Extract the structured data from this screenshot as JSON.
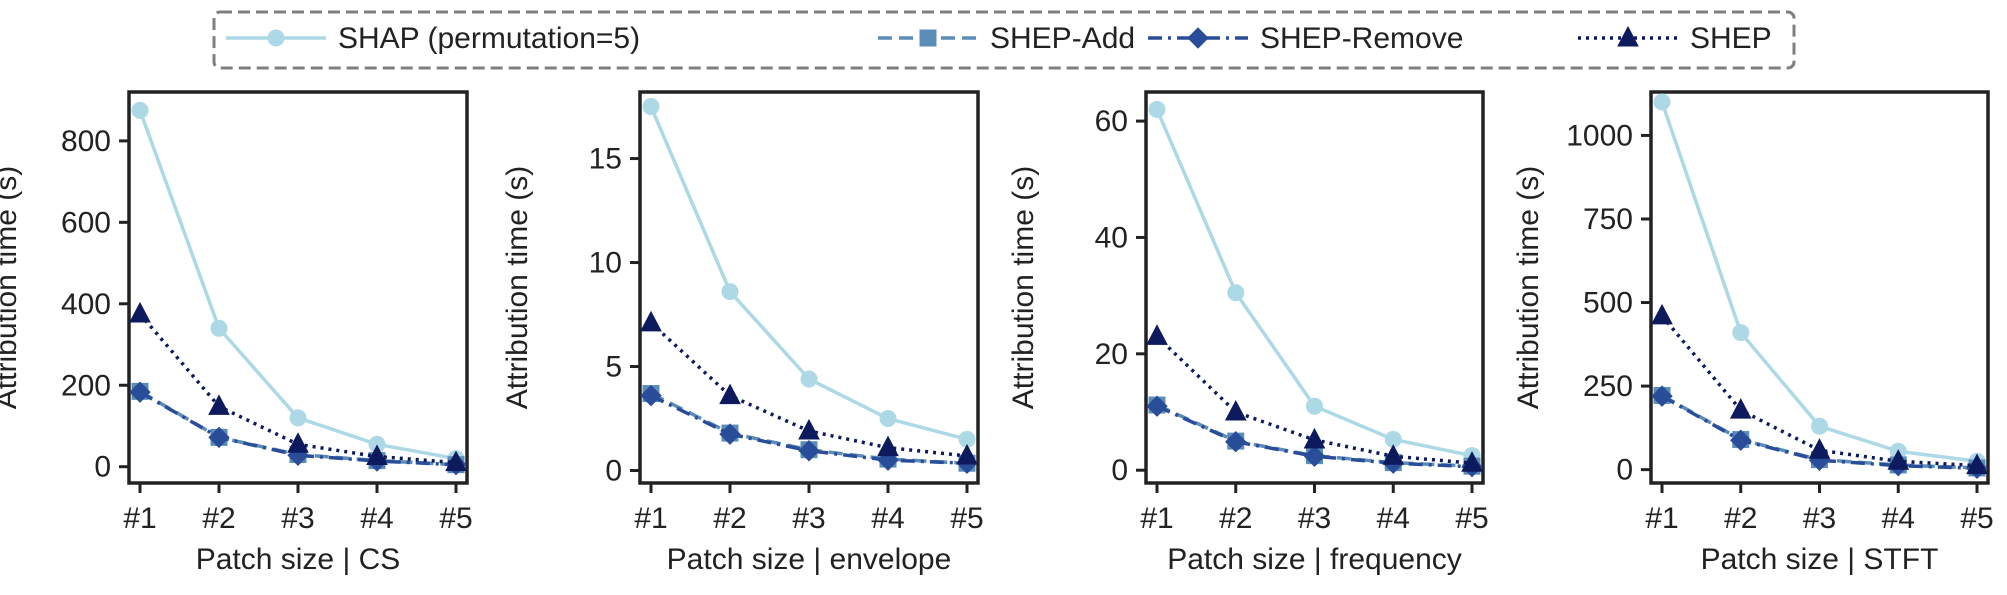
{
  "legend": {
    "entries": [
      {
        "label": "SHAP (permutation=5)",
        "color": "#add8e6",
        "dash": "solid",
        "marker": "circle"
      },
      {
        "label": "SHEP-Add",
        "color": "#5b8db8",
        "dash": "dashed",
        "marker": "square"
      },
      {
        "label": "SHEP-Remove",
        "color": "#2a4d9a",
        "dash": "dashdot",
        "marker": "diamond"
      },
      {
        "label": "SHEP",
        "color": "#0d1a5e",
        "dash": "dotted",
        "marker": "triangle"
      }
    ]
  },
  "chart_data": [
    {
      "type": "line",
      "title": "",
      "xlabel": "Patch size | CS",
      "ylabel": "Attribution time (s)",
      "categories": [
        "#1",
        "#2",
        "#3",
        "#4",
        "#5"
      ],
      "ylim": [
        -40,
        920
      ],
      "yticks": [
        0,
        200,
        400,
        600,
        800
      ],
      "grid": false,
      "legend": "top-center",
      "series": [
        {
          "name": "SHAP (permutation=5)",
          "values": [
            875,
            340,
            120,
            55,
            20
          ]
        },
        {
          "name": "SHEP-Add",
          "values": [
            185,
            72,
            30,
            15,
            5
          ]
        },
        {
          "name": "SHEP-Remove",
          "values": [
            183,
            72,
            28,
            14,
            5
          ]
        },
        {
          "name": "SHEP",
          "values": [
            375,
            148,
            55,
            25,
            10
          ]
        }
      ]
    },
    {
      "type": "line",
      "title": "",
      "xlabel": "Patch size | envelope",
      "ylabel": "Attribution time (s)",
      "categories": [
        "#1",
        "#2",
        "#3",
        "#4",
        "#5"
      ],
      "ylim": [
        -0.6,
        18.2
      ],
      "yticks": [
        0,
        5,
        10,
        15
      ],
      "grid": false,
      "legend": "top-center",
      "series": [
        {
          "name": "SHAP (permutation=5)",
          "values": [
            17.5,
            8.6,
            4.4,
            2.5,
            1.5
          ]
        },
        {
          "name": "SHEP-Add",
          "values": [
            3.7,
            1.8,
            1.0,
            0.55,
            0.35
          ]
        },
        {
          "name": "SHEP-Remove",
          "values": [
            3.6,
            1.75,
            0.95,
            0.5,
            0.35
          ]
        },
        {
          "name": "SHEP",
          "values": [
            7.1,
            3.6,
            1.9,
            1.1,
            0.7
          ]
        }
      ]
    },
    {
      "type": "line",
      "title": "",
      "xlabel": "Patch size | frequency",
      "ylabel": "Attribution time (s)",
      "categories": [
        "#1",
        "#2",
        "#3",
        "#4",
        "#5"
      ],
      "ylim": [
        -2.2,
        65
      ],
      "yticks": [
        0,
        20,
        40,
        60
      ],
      "grid": false,
      "legend": "top-center",
      "series": [
        {
          "name": "SHAP (permutation=5)",
          "values": [
            62,
            30.5,
            11,
            5.3,
            2.5
          ]
        },
        {
          "name": "SHEP-Add",
          "values": [
            11.2,
            5,
            2.5,
            1.3,
            0.7
          ]
        },
        {
          "name": "SHEP-Remove",
          "values": [
            11,
            4.9,
            2.4,
            1.2,
            0.6
          ]
        },
        {
          "name": "SHEP",
          "values": [
            23,
            10,
            5.2,
            2.4,
            1.2
          ]
        }
      ]
    },
    {
      "type": "line",
      "title": "",
      "xlabel": "Patch size | STFT",
      "ylabel": "Attribution time (s)",
      "categories": [
        "#1",
        "#2",
        "#3",
        "#4",
        "#5"
      ],
      "ylim": [
        -40,
        1130
      ],
      "yticks": [
        0,
        250,
        500,
        750,
        1000
      ],
      "grid": false,
      "legend": "top-center",
      "series": [
        {
          "name": "SHAP (permutation=5)",
          "values": [
            1100,
            410,
            130,
            55,
            25
          ]
        },
        {
          "name": "SHEP-Add",
          "values": [
            222,
            90,
            30,
            14,
            5
          ]
        },
        {
          "name": "SHEP-Remove",
          "values": [
            220,
            88,
            28,
            12,
            4
          ]
        },
        {
          "name": "SHEP",
          "values": [
            460,
            178,
            58,
            25,
            12
          ]
        }
      ]
    }
  ]
}
